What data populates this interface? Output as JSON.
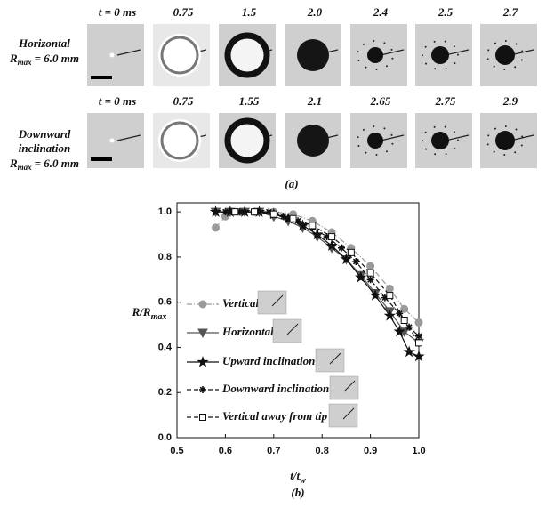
{
  "panel_a": {
    "rows": [
      {
        "label": [
          "Horizontal"
        ],
        "r": "R",
        "r_sub": "max",
        "r_value": "= 6.0 mm",
        "times": [
          "t = 0 ms",
          "0.75",
          "1.5",
          "2.0",
          "2.4",
          "2.5",
          "2.7"
        ]
      },
      {
        "label": [
          "Downward",
          "inclination"
        ],
        "r": "R",
        "r_sub": "max",
        "r_value": "= 6.0 mm",
        "times": [
          "t = 0 ms",
          "0.75",
          "1.55",
          "2.1",
          "2.65",
          "2.75",
          "2.9"
        ]
      }
    ],
    "caption": "(a)"
  },
  "chart_data": {
    "type": "line",
    "caption": "(b)",
    "xlabel": "t/t",
    "xlabel_sub": "w",
    "ylabel": "R/R",
    "ylabel_sub": "max",
    "xlim": [
      0.5,
      1.0
    ],
    "ylim": [
      0,
      1.04
    ],
    "xticks": [
      0.5,
      0.6,
      0.7,
      0.8,
      0.9,
      {
        "value": 1,
        "label": "1.0"
      }
    ],
    "yticks": [
      {
        "value": 0,
        "label": "0.0"
      },
      0.2,
      0.4,
      0.6,
      0.8,
      {
        "value": 1,
        "label": "1.0"
      }
    ],
    "series": [
      {
        "name": "Vertical",
        "color": "#9a9a9a",
        "marker": "circle",
        "dash": "dashdot",
        "x": [
          0.58,
          0.6,
          0.63,
          0.66,
          0.7,
          0.74,
          0.78,
          0.82,
          0.86,
          0.9,
          0.94,
          0.97,
          1.0
        ],
        "values": [
          0.93,
          0.98,
          1.0,
          1.0,
          1.0,
          0.99,
          0.96,
          0.91,
          0.84,
          0.76,
          0.66,
          0.57,
          0.51
        ]
      },
      {
        "name": "Horizontal",
        "color": "#555555",
        "marker": "triangle",
        "dash": "solid",
        "x": [
          0.58,
          0.61,
          0.64,
          0.67,
          0.7,
          0.73,
          0.76,
          0.79,
          0.82,
          0.85,
          0.88,
          0.91,
          0.94,
          0.97,
          1.0
        ],
        "values": [
          1.0,
          1.0,
          1.0,
          1.0,
          0.98,
          0.96,
          0.93,
          0.89,
          0.84,
          0.79,
          0.72,
          0.64,
          0.56,
          0.47,
          0.42
        ]
      },
      {
        "name": "Upward inclination",
        "color": "#111111",
        "marker": "star",
        "dash": "solid",
        "x": [
          0.58,
          0.61,
          0.64,
          0.67,
          0.7,
          0.73,
          0.76,
          0.79,
          0.82,
          0.85,
          0.88,
          0.91,
          0.94,
          0.96,
          0.98,
          1.0
        ],
        "values": [
          1.0,
          1.0,
          1.0,
          1.0,
          0.99,
          0.97,
          0.94,
          0.9,
          0.85,
          0.79,
          0.71,
          0.63,
          0.54,
          0.47,
          0.38,
          0.36
        ]
      },
      {
        "name": "Downward inclination",
        "color": "#111111",
        "marker": "asterisk",
        "dash": "dashed",
        "x": [
          0.6,
          0.63,
          0.66,
          0.69,
          0.72,
          0.75,
          0.78,
          0.81,
          0.84,
          0.87,
          0.9,
          0.93,
          0.96,
          0.98,
          1.0
        ],
        "values": [
          1.0,
          1.0,
          1.0,
          1.0,
          0.98,
          0.96,
          0.93,
          0.89,
          0.84,
          0.78,
          0.7,
          0.62,
          0.55,
          0.49,
          0.45
        ]
      },
      {
        "name": "Vertical away from tip",
        "color": "#111111",
        "marker": "square",
        "dash": "dashed",
        "x": [
          0.62,
          0.66,
          0.7,
          0.74,
          0.78,
          0.82,
          0.86,
          0.9,
          0.94,
          0.97,
          1.0
        ],
        "values": [
          1.0,
          1.0,
          0.99,
          0.97,
          0.94,
          0.89,
          0.82,
          0.73,
          0.63,
          0.52,
          0.42
        ]
      }
    ]
  }
}
